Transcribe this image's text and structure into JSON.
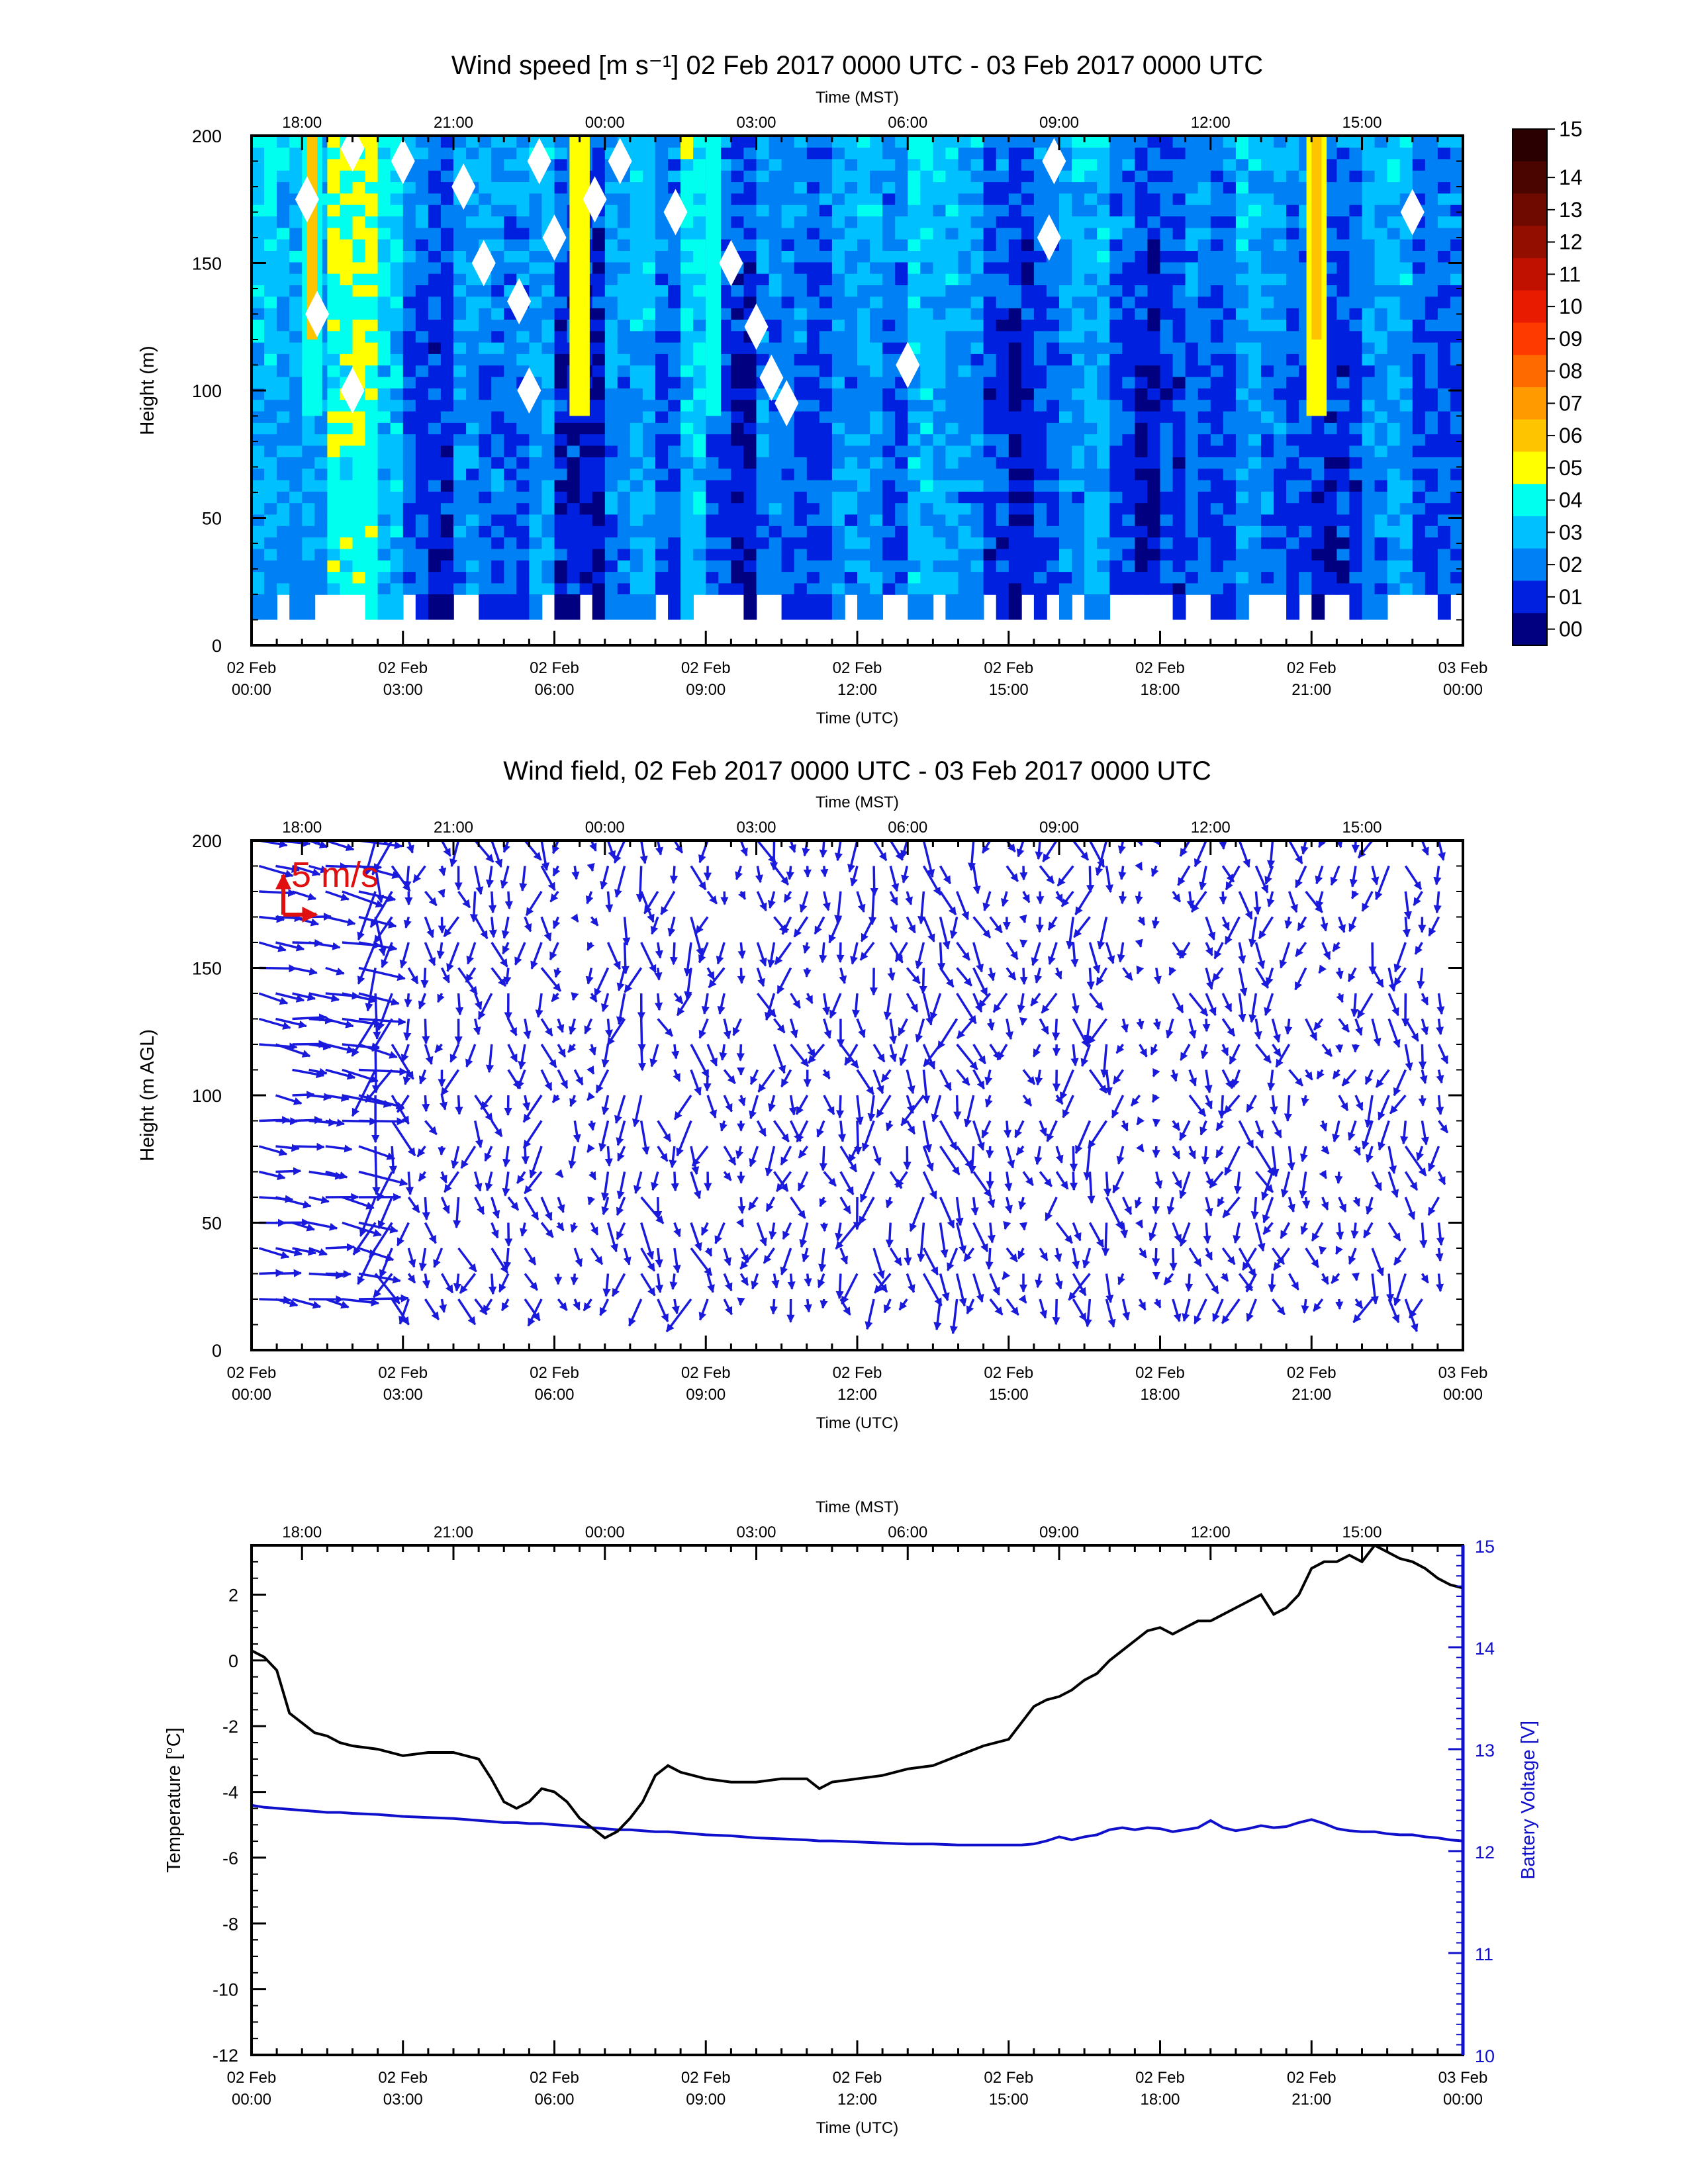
{
  "panels": {
    "speed": {
      "title": "Wind speed [m s⁻¹] 02 Feb 2017 0000 UTC - 03 Feb 2017 0000 UTC",
      "ylabel": "Height (m)",
      "xlabel_top": "Time (MST)",
      "xlabel_bottom": "Time (UTC)"
    },
    "field": {
      "title": "Wind field, 02 Feb 2017 0000 UTC - 03 Feb 2017 0000 UTC",
      "ylabel": "Height (m AGL)",
      "xlabel_top": "Time (MST)",
      "xlabel_bottom": "Time (UTC)",
      "ref_label": "5 m/s"
    },
    "temp": {
      "xlabel_top": "Time (MST)",
      "xlabel_bottom": "Time (UTC)",
      "ylabel_left": "Temperature [°C]",
      "ylabel_right": "Battery Voltage [V]"
    }
  },
  "utc_ticks": [
    {
      "line1": "02 Feb",
      "line2": "00:00"
    },
    {
      "line1": "02 Feb",
      "line2": "03:00"
    },
    {
      "line1": "02 Feb",
      "line2": "06:00"
    },
    {
      "line1": "02 Feb",
      "line2": "09:00"
    },
    {
      "line1": "02 Feb",
      "line2": "12:00"
    },
    {
      "line1": "02 Feb",
      "line2": "15:00"
    },
    {
      "line1": "02 Feb",
      "line2": "18:00"
    },
    {
      "line1": "02 Feb",
      "line2": "21:00"
    },
    {
      "line1": "03 Feb",
      "line2": "00:00"
    }
  ],
  "mst_ticks": [
    "18:00",
    "21:00",
    "00:00",
    "03:00",
    "06:00",
    "09:00",
    "12:00",
    "15:00"
  ],
  "height_ticks": [
    "0",
    "50",
    "100",
    "150",
    "200"
  ],
  "temp_ticks": [
    "2",
    "0",
    "-2",
    "-4",
    "-6",
    "-8",
    "-10",
    "-12"
  ],
  "volt_ticks": [
    "15",
    "14",
    "13",
    "12",
    "11",
    "10"
  ],
  "colorbar": {
    "labels": [
      "15",
      "14",
      "13",
      "12",
      "11",
      "10",
      "09",
      "08",
      "07",
      "06",
      "05",
      "04",
      "03",
      "02",
      "01",
      "00"
    ],
    "colors": [
      "#2a0000",
      "#4a0500",
      "#6e0a00",
      "#940e00",
      "#c01000",
      "#e81a00",
      "#ff3a00",
      "#ff6a00",
      "#ff9a00",
      "#ffc400",
      "#ffff00",
      "#00ffee",
      "#00c0ff",
      "#0080f5",
      "#0020e0",
      "#000080"
    ]
  },
  "chart_data": [
    {
      "type": "heatmap",
      "title": "Wind speed [m s⁻¹] 02 Feb 2017 0000 UTC - 03 Feb 2017 0000 UTC",
      "xlabel": "Time (UTC)",
      "ylabel": "Height (m)",
      "xlim_hours": [
        0,
        24
      ],
      "ylim": [
        0,
        200
      ],
      "heights_m": [
        20,
        40,
        60,
        80,
        100,
        120,
        140,
        160,
        180,
        200
      ],
      "time_step_hours": 0.5,
      "value_range": [
        0,
        15
      ],
      "profiles_mean_speed": [
        3.2,
        3.0,
        2.8,
        4.5,
        4.8,
        3.6,
        2.0,
        1.5,
        2.6,
        2.4,
        2.2,
        2.8,
        1.5,
        1.2,
        2.6,
        3.2,
        2.0,
        3.6,
        1.8,
        1.2,
        2.4,
        2.2,
        1.8,
        2.6,
        2.8,
        2.0,
        3.4,
        3.0,
        2.6,
        1.6,
        1.2,
        2.0,
        2.6,
        3.0,
        1.8,
        1.2,
        1.6,
        2.2,
        1.8,
        2.8,
        2.4,
        2.0,
        1.4,
        1.6,
        2.6,
        3.0,
        1.8,
        2.0,
        2.6
      ]
    },
    {
      "type": "scatter",
      "title": "Wind field, 02 Feb 2017 0000 UTC - 03 Feb 2017 0000 UTC",
      "xlabel": "Time (UTC)",
      "ylabel": "Height (m AGL)",
      "xlim_hours": [
        0,
        24
      ],
      "ylim": [
        0,
        200
      ],
      "reference_vector_mps": 5,
      "series": [
        {
          "name": "wind vectors",
          "note_units": "m/s",
          "values": []
        }
      ]
    },
    {
      "type": "line",
      "xlabel": "Time (UTC)",
      "xlim_hours": [
        0,
        24
      ],
      "ylim_left": [
        -12,
        3.5
      ],
      "ylim_right": [
        10,
        15
      ],
      "x": [
        0,
        0.25,
        0.5,
        0.75,
        1.0,
        1.25,
        1.5,
        1.75,
        2.0,
        2.5,
        3.0,
        3.5,
        4.0,
        4.5,
        4.75,
        5.0,
        5.25,
        5.5,
        5.75,
        6.0,
        6.25,
        6.5,
        6.75,
        7.0,
        7.25,
        7.5,
        7.75,
        8.0,
        8.25,
        8.5,
        8.75,
        9.0,
        9.5,
        10.0,
        10.5,
        11.0,
        11.25,
        11.5,
        12.0,
        12.5,
        13.0,
        13.5,
        14.0,
        14.5,
        15.0,
        15.25,
        15.5,
        15.75,
        16.0,
        16.25,
        16.5,
        16.75,
        17.0,
        17.25,
        17.5,
        17.75,
        18.0,
        18.25,
        18.5,
        18.75,
        19.0,
        19.25,
        19.5,
        19.75,
        20.0,
        20.25,
        20.5,
        20.75,
        21.0,
        21.25,
        21.5,
        21.75,
        22.0,
        22.25,
        22.5,
        22.75,
        23.0,
        23.25,
        23.5,
        23.75,
        24.0
      ],
      "series": [
        {
          "name": "Temperature [°C]",
          "axis": "left",
          "color": "#000000",
          "values": [
            0.3,
            0.1,
            -0.3,
            -1.6,
            -1.9,
            -2.2,
            -2.3,
            -2.5,
            -2.6,
            -2.7,
            -2.9,
            -2.8,
            -2.8,
            -3.0,
            -3.6,
            -4.3,
            -4.5,
            -4.3,
            -3.9,
            -4.0,
            -4.3,
            -4.8,
            -5.1,
            -5.4,
            -5.2,
            -4.8,
            -4.3,
            -3.5,
            -3.2,
            -3.4,
            -3.5,
            -3.6,
            -3.7,
            -3.7,
            -3.6,
            -3.6,
            -3.9,
            -3.7,
            -3.6,
            -3.5,
            -3.3,
            -3.2,
            -2.9,
            -2.6,
            -2.4,
            -1.9,
            -1.4,
            -1.2,
            -1.1,
            -0.9,
            -0.6,
            -0.4,
            0.0,
            0.3,
            0.6,
            0.9,
            1.0,
            0.8,
            1.0,
            1.2,
            1.2,
            1.4,
            1.6,
            1.8,
            2.0,
            1.4,
            1.6,
            2.0,
            2.8,
            3.0,
            3.0,
            3.2,
            3.0,
            3.5,
            3.3,
            3.1,
            3.0,
            2.8,
            2.5,
            2.3,
            2.2
          ]
        },
        {
          "name": "Battery Voltage [V]",
          "axis": "right",
          "color": "#1010cc",
          "values": [
            12.45,
            12.43,
            12.42,
            12.41,
            12.4,
            12.39,
            12.38,
            12.38,
            12.37,
            12.36,
            12.34,
            12.33,
            12.32,
            12.3,
            12.29,
            12.28,
            12.28,
            12.27,
            12.27,
            12.26,
            12.25,
            12.24,
            12.23,
            12.22,
            12.21,
            12.21,
            12.2,
            12.19,
            12.19,
            12.18,
            12.17,
            12.16,
            12.15,
            12.13,
            12.12,
            12.11,
            12.1,
            12.1,
            12.09,
            12.08,
            12.07,
            12.07,
            12.06,
            12.06,
            12.06,
            12.06,
            12.07,
            12.1,
            12.14,
            12.11,
            12.14,
            12.16,
            12.21,
            12.23,
            12.21,
            12.23,
            12.22,
            12.19,
            12.21,
            12.23,
            12.3,
            12.23,
            12.2,
            12.22,
            12.25,
            12.23,
            12.24,
            12.28,
            12.31,
            12.27,
            12.22,
            12.2,
            12.19,
            12.19,
            12.17,
            12.16,
            12.16,
            12.14,
            12.13,
            12.11,
            12.1
          ]
        }
      ]
    }
  ]
}
